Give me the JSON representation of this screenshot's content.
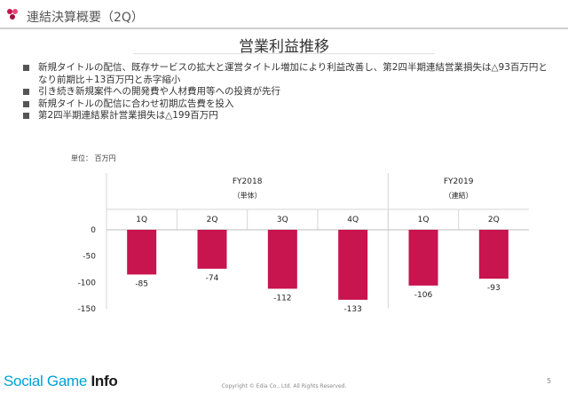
{
  "header": {
    "title": "連結決算概要（2Q）"
  },
  "slide_title": "営業利益推移",
  "bullets": [
    "新規タイトルの配信、既存サービスの拡大と運営タイトル増加により利益改善し、第2四半期連結営業損失は△93百万円となり前期比＋13百万円と赤字縮小",
    "引き続き新規案件への開発費や人材費用等への投資が先行",
    "新規タイトルの配信に合わせ初期広告費を投入",
    "第2四半期連結累計営業損失は△199百万円"
  ],
  "unit_label": "単位： 百万円",
  "chart_data": {
    "type": "bar",
    "groups": [
      {
        "label": "FY2018",
        "sublabel": "（単体）",
        "categories": [
          "1Q",
          "2Q",
          "3Q",
          "4Q"
        ]
      },
      {
        "label": "FY2019",
        "sublabel": "（連結）",
        "categories": [
          "1Q",
          "2Q"
        ]
      }
    ],
    "categories": [
      "1Q",
      "2Q",
      "3Q",
      "4Q",
      "1Q",
      "2Q"
    ],
    "values": [
      -85,
      -74,
      -112,
      -133,
      -106,
      -93
    ],
    "value_labels": [
      "-85",
      "-74",
      "-112",
      "-133",
      "-106",
      "-93"
    ],
    "y_ticks": [
      "0",
      "-50",
      "-100",
      "-150"
    ],
    "y_tick_values": [
      0,
      -50,
      -100,
      -150
    ],
    "ylim": [
      -150,
      0
    ],
    "bar_color": "#c8144f"
  },
  "footer": {
    "brand_a": "Social Game ",
    "brand_b": "Info",
    "copyright": "Copyright © Edia Co., Ltd. All Rights Reserved.",
    "page_number": "5"
  }
}
